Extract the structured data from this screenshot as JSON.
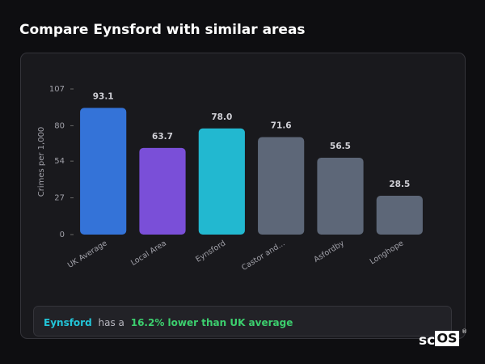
{
  "chart_data": {
    "type": "bar",
    "title": "Compare Eynsford with similar areas",
    "y_label": "Crimes per 1,000",
    "categories": [
      "UK Average",
      "Local Area",
      "Eynsford",
      "Castor and...",
      "Asfordby",
      "Longhope"
    ],
    "values": [
      93.1,
      63.7,
      78.0,
      71.6,
      56.5,
      28.5
    ],
    "value_labels": [
      "93.1",
      "63.7",
      "78.0",
      "71.6",
      "56.5",
      "28.5"
    ],
    "colors": [
      "#3473d8",
      "#7a4fd8",
      "#22b8d0",
      "#5d6778",
      "#5d6778",
      "#5d6778"
    ],
    "ylim": [
      0,
      107
    ],
    "yticks": [
      0,
      27,
      54,
      80,
      107
    ]
  },
  "summary": {
    "area": "Eynsford",
    "text": "has a",
    "highlight": "16.2% lower than UK average"
  },
  "logo": {
    "prefix": "sc",
    "boxed": "OS",
    "mark": "®"
  }
}
